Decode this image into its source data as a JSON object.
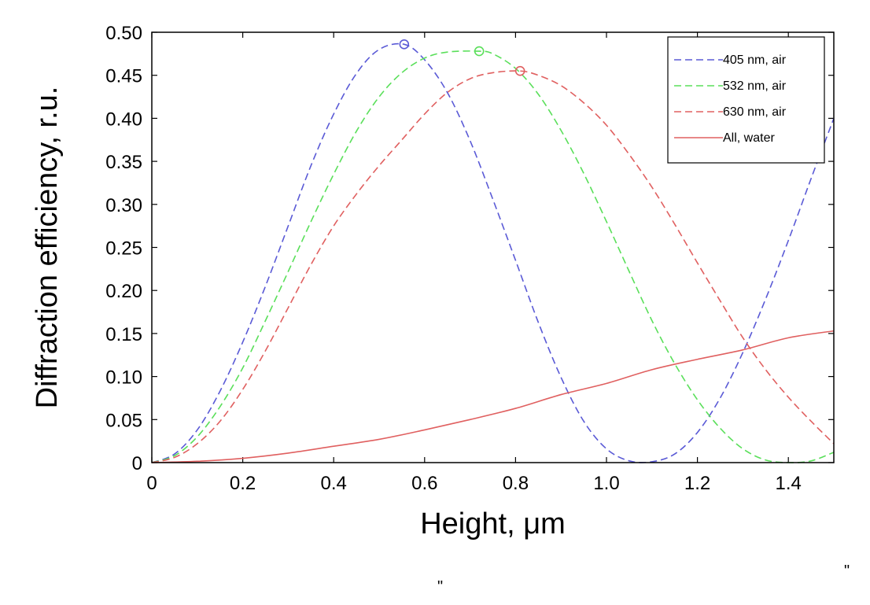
{
  "chart_data": {
    "type": "line",
    "title": "",
    "xlabel": "Height, μm",
    "ylabel": "Diffraction efficiency, r.u.",
    "xlim": [
      0,
      1.5
    ],
    "ylim": [
      0,
      0.5
    ],
    "x_ticks": [
      {
        "value": 0,
        "label": "0"
      },
      {
        "value": 0.2,
        "label": "0.2"
      },
      {
        "value": 0.4,
        "label": "0.4"
      },
      {
        "value": 0.6,
        "label": "0.6"
      },
      {
        "value": 0.8,
        "label": "0.8"
      },
      {
        "value": 1.0,
        "label": "1.0"
      },
      {
        "value": 1.2,
        "label": "1.2"
      },
      {
        "value": 1.4,
        "label": "1.4"
      }
    ],
    "y_ticks": [
      {
        "value": 0,
        "label": "0"
      },
      {
        "value": 0.05,
        "label": "0.05"
      },
      {
        "value": 0.1,
        "label": "0.10"
      },
      {
        "value": 0.15,
        "label": "0.15"
      },
      {
        "value": 0.2,
        "label": "0.20"
      },
      {
        "value": 0.25,
        "label": "0.25"
      },
      {
        "value": 0.3,
        "label": "0.30"
      },
      {
        "value": 0.35,
        "label": "0.35"
      },
      {
        "value": 0.4,
        "label": "0.40"
      },
      {
        "value": 0.45,
        "label": "0.45"
      },
      {
        "value": 0.5,
        "label": "0.50"
      }
    ],
    "grid": false,
    "legend": "top-right",
    "series": [
      {
        "name": "405 nm, air",
        "color": "#5a5ad6",
        "dashed": true,
        "peak": [
          0.555,
          0.486
        ],
        "x": [
          0,
          0.05,
          0.1,
          0.15,
          0.2,
          0.25,
          0.3,
          0.35,
          0.4,
          0.45,
          0.5,
          0.555,
          0.6,
          0.65,
          0.7,
          0.75,
          0.8,
          0.85,
          0.9,
          0.95,
          1.0,
          1.05,
          1.1,
          1.15,
          1.2,
          1.25,
          1.3,
          1.35,
          1.4,
          1.45,
          1.5
        ],
        "y": [
          0,
          0.01,
          0.038,
          0.083,
          0.14,
          0.205,
          0.275,
          0.345,
          0.405,
          0.452,
          0.48,
          0.486,
          0.468,
          0.43,
          0.374,
          0.306,
          0.235,
          0.163,
          0.099,
          0.048,
          0.016,
          0.002,
          0.001,
          0.01,
          0.035,
          0.075,
          0.128,
          0.19,
          0.258,
          0.33,
          0.4
        ]
      },
      {
        "name": "532 nm, air",
        "color": "#5adf5a",
        "dashed": true,
        "peak": [
          0.72,
          0.478
        ],
        "x": [
          0,
          0.05,
          0.1,
          0.15,
          0.2,
          0.25,
          0.3,
          0.35,
          0.4,
          0.45,
          0.5,
          0.55,
          0.6,
          0.65,
          0.72,
          0.75,
          0.8,
          0.85,
          0.9,
          0.95,
          1.0,
          1.05,
          1.1,
          1.15,
          1.2,
          1.25,
          1.3,
          1.35,
          1.4,
          1.45,
          1.5
        ],
        "y": [
          0,
          0.008,
          0.03,
          0.065,
          0.11,
          0.165,
          0.222,
          0.28,
          0.335,
          0.385,
          0.425,
          0.453,
          0.47,
          0.477,
          0.478,
          0.475,
          0.458,
          0.428,
          0.386,
          0.336,
          0.28,
          0.222,
          0.165,
          0.115,
          0.073,
          0.04,
          0.016,
          0.003,
          0.0,
          0.002,
          0.012
        ]
      },
      {
        "name": "630 nm, air",
        "color": "#e06060",
        "dashed": true,
        "peak": [
          0.81,
          0.455
        ],
        "x": [
          0,
          0.05,
          0.1,
          0.15,
          0.2,
          0.25,
          0.3,
          0.35,
          0.4,
          0.45,
          0.5,
          0.55,
          0.6,
          0.65,
          0.7,
          0.75,
          0.81,
          0.85,
          0.9,
          0.95,
          1.0,
          1.05,
          1.1,
          1.15,
          1.2,
          1.25,
          1.3,
          1.35,
          1.4,
          1.45,
          1.5
        ],
        "y": [
          0,
          0.006,
          0.022,
          0.048,
          0.085,
          0.13,
          0.18,
          0.23,
          0.275,
          0.312,
          0.345,
          0.375,
          0.405,
          0.43,
          0.446,
          0.453,
          0.455,
          0.45,
          0.438,
          0.418,
          0.392,
          0.358,
          0.32,
          0.277,
          0.232,
          0.188,
          0.145,
          0.108,
          0.076,
          0.048,
          0.022
        ]
      },
      {
        "name": "All, water",
        "color": "#e06060",
        "dashed": false,
        "x": [
          0,
          0.1,
          0.2,
          0.3,
          0.4,
          0.5,
          0.6,
          0.7,
          0.8,
          0.9,
          1.0,
          1.1,
          1.2,
          1.3,
          1.4,
          1.5
        ],
        "y": [
          0,
          0.0015,
          0.005,
          0.011,
          0.019,
          0.027,
          0.038,
          0.05,
          0.063,
          0.079,
          0.092,
          0.108,
          0.12,
          0.131,
          0.145,
          0.153
        ]
      }
    ]
  },
  "stray_marks": [
    "\"",
    "\""
  ]
}
